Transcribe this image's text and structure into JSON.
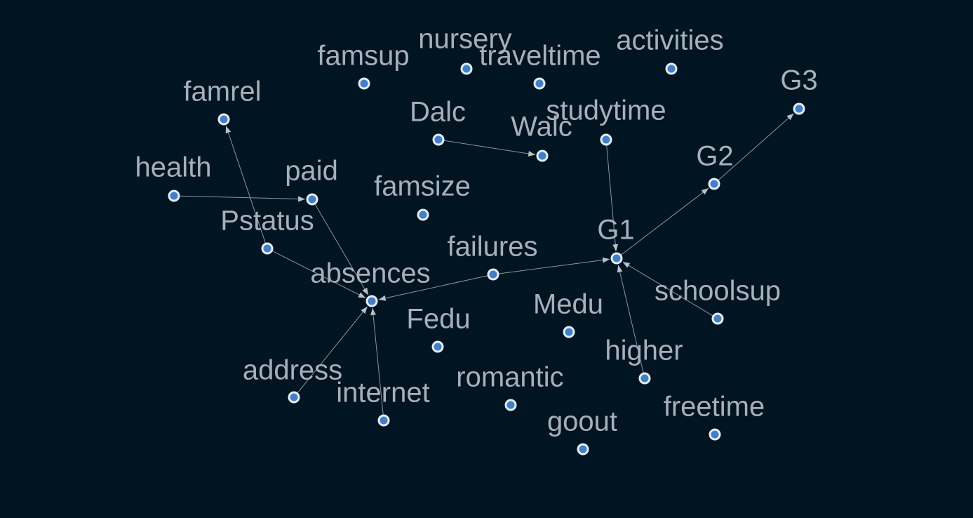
{
  "diagram": {
    "type": "directed-graph",
    "colors": {
      "background": "#011422",
      "node_fill": "#3f7fcf",
      "node_stroke": "#e6edf2",
      "edge": "#8d959b",
      "label": "#a7b0b7"
    },
    "nodes": [
      {
        "id": "nursery",
        "label": "nursery"
      },
      {
        "id": "famsup",
        "label": "famsup"
      },
      {
        "id": "traveltime",
        "label": "traveltime"
      },
      {
        "id": "activities",
        "label": "activities"
      },
      {
        "id": "G3",
        "label": "G3"
      },
      {
        "id": "famrel",
        "label": "famrel"
      },
      {
        "id": "Dalc",
        "label": "Dalc"
      },
      {
        "id": "studytime",
        "label": "studytime"
      },
      {
        "id": "Walc",
        "label": "Walc"
      },
      {
        "id": "health",
        "label": "health"
      },
      {
        "id": "paid",
        "label": "paid"
      },
      {
        "id": "famsize",
        "label": "famsize"
      },
      {
        "id": "G2",
        "label": "G2"
      },
      {
        "id": "Pstatus",
        "label": "Pstatus"
      },
      {
        "id": "G1",
        "label": "G1"
      },
      {
        "id": "failures",
        "label": "failures"
      },
      {
        "id": "absences",
        "label": "absences"
      },
      {
        "id": "schoolsup",
        "label": "schoolsup"
      },
      {
        "id": "Medu",
        "label": "Medu"
      },
      {
        "id": "Fedu",
        "label": "Fedu"
      },
      {
        "id": "higher",
        "label": "higher"
      },
      {
        "id": "address",
        "label": "address"
      },
      {
        "id": "romantic",
        "label": "romantic"
      },
      {
        "id": "internet",
        "label": "internet"
      },
      {
        "id": "freetime",
        "label": "freetime"
      },
      {
        "id": "goout",
        "label": "goout"
      }
    ],
    "edges": [
      {
        "from": "Pstatus",
        "to": "famrel"
      },
      {
        "from": "health",
        "to": "paid"
      },
      {
        "from": "Dalc",
        "to": "Walc"
      },
      {
        "from": "studytime",
        "to": "G1"
      },
      {
        "from": "G1",
        "to": "G2"
      },
      {
        "from": "G2",
        "to": "G3"
      },
      {
        "from": "paid",
        "to": "absences"
      },
      {
        "from": "Pstatus",
        "to": "absences"
      },
      {
        "from": "failures",
        "to": "absences"
      },
      {
        "from": "failures",
        "to": "G1"
      },
      {
        "from": "schoolsup",
        "to": "G1"
      },
      {
        "from": "higher",
        "to": "G1"
      },
      {
        "from": "address",
        "to": "absences"
      },
      {
        "from": "internet",
        "to": "absences"
      }
    ]
  }
}
